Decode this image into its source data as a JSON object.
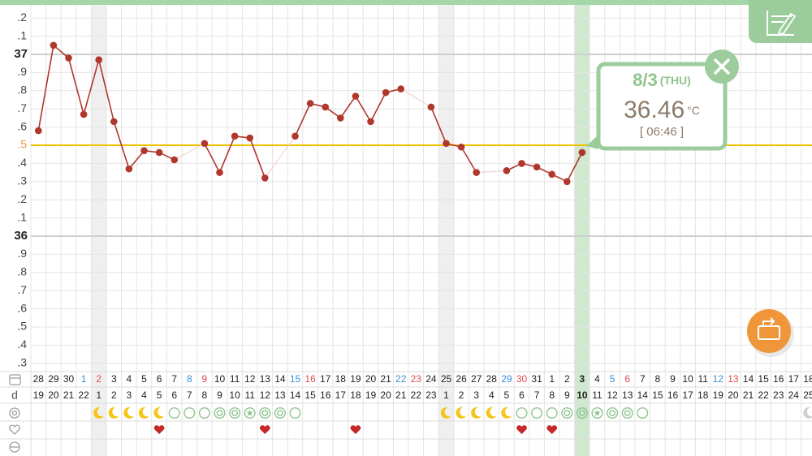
{
  "chart_data": {
    "type": "line",
    "categories": [
      "28",
      "29",
      "30",
      "1",
      "2",
      "3",
      "4",
      "5",
      "6",
      "7",
      "8",
      "9",
      "10",
      "11",
      "12",
      "13",
      "14",
      "15",
      "16",
      "17",
      "18",
      "19",
      "20",
      "21",
      "22",
      "23",
      "24",
      "25",
      "26",
      "27",
      "28",
      "29",
      "30",
      "31",
      "1",
      "2",
      "3",
      "4",
      "5",
      "6",
      "7",
      "8",
      "9",
      "10",
      "11",
      "12",
      "13",
      "14",
      "15",
      "16",
      "17",
      "18"
    ],
    "cycle_days": [
      "19",
      "20",
      "21",
      "22",
      "1",
      "2",
      "3",
      "4",
      "5",
      "6",
      "7",
      "8",
      "9",
      "10",
      "11",
      "12",
      "13",
      "14",
      "15",
      "16",
      "17",
      "18",
      "19",
      "20",
      "21",
      "22",
      "23",
      "1",
      "2",
      "3",
      "4",
      "5",
      "6",
      "7",
      "8",
      "9",
      "10",
      "11",
      "12",
      "13",
      "14",
      "15",
      "16",
      "17",
      "18",
      "19",
      "20",
      "21",
      "22",
      "23",
      "24",
      "25"
    ],
    "values": [
      36.58,
      37.05,
      36.98,
      36.67,
      36.97,
      36.63,
      36.37,
      36.47,
      36.46,
      36.42,
      null,
      36.51,
      36.35,
      36.55,
      36.54,
      36.32,
      null,
      36.55,
      36.73,
      36.71,
      36.65,
      36.77,
      36.63,
      36.79,
      36.81,
      null,
      36.71,
      36.51,
      36.49,
      36.35,
      null,
      36.36,
      36.4,
      36.38,
      36.34,
      36.3,
      36.46,
      null,
      null,
      null,
      null,
      null,
      null,
      null,
      null,
      null,
      null,
      null,
      null,
      null,
      null,
      null
    ],
    "color": "#b0372c",
    "ylim": [
      35.25,
      37.25
    ],
    "yticks": [
      {
        "value": 37.2,
        "label": ".2"
      },
      {
        "value": 37.1,
        "label": ".1"
      },
      37,
      {
        "value": 36.9,
        "label": ".9"
      },
      {
        "value": 36.8,
        "label": ".8"
      },
      {
        "value": 36.7,
        "label": ".7"
      },
      {
        "value": 36.6,
        "label": ".6"
      },
      {
        "value": 36.5,
        "label": ".5"
      },
      {
        "value": 36.4,
        "label": ".4"
      },
      {
        "value": 36.3,
        "label": ".3"
      },
      {
        "value": 36.2,
        "label": ".2"
      },
      {
        "value": 36.1,
        "label": ".1"
      },
      36,
      {
        "value": 35.9,
        "label": ".9"
      },
      {
        "value": 35.8,
        "label": ".8"
      },
      {
        "value": 35.7,
        "label": ".7"
      },
      {
        "value": 35.6,
        "label": ".6"
      },
      {
        "value": 35.5,
        "label": ".5"
      },
      {
        "value": 35.4,
        "label": ".4"
      },
      {
        "value": 35.3,
        "label": ".3"
      }
    ],
    "grid": true,
    "coverline": 36.5,
    "coverline_color": "#f2c200",
    "day_colors": [
      null,
      null,
      null,
      "#3b8fd9",
      "#e04b4b",
      null,
      null,
      null,
      null,
      null,
      "#3b8fd9",
      "#e04b4b",
      null,
      null,
      null,
      null,
      null,
      "#3b8fd9",
      "#e04b4b",
      null,
      null,
      null,
      null,
      null,
      "#3b8fd9",
      "#e04b4b",
      null,
      null,
      null,
      null,
      null,
      "#3b8fd9",
      "#e04b4b",
      null,
      null,
      null,
      null,
      null,
      "#3b8fd9",
      "#e04b4b",
      null,
      null,
      null,
      null,
      null,
      "#3b8fd9",
      "#e04b4b",
      null,
      null,
      null,
      null,
      null
    ],
    "highlight_columns": [
      4,
      27
    ],
    "selected": 36,
    "symbols": [
      null,
      null,
      null,
      null,
      "moon",
      "moon",
      "moon",
      "moon",
      "moon",
      "circle",
      "circle",
      "circle",
      "double",
      "double",
      "star",
      "double",
      "double",
      "circle",
      null,
      null,
      null,
      null,
      null,
      null,
      null,
      null,
      null,
      "moon",
      "moon",
      "moon",
      "moon",
      "moon",
      "circle",
      "circle",
      "circle",
      "double",
      "double",
      "star",
      "double",
      "double",
      "circle",
      null,
      null,
      null,
      null,
      null,
      null,
      null,
      null,
      null,
      null,
      "moon-grey"
    ],
    "hearts": [
      false,
      false,
      false,
      false,
      false,
      false,
      false,
      false,
      true,
      false,
      false,
      false,
      false,
      false,
      false,
      true,
      false,
      false,
      false,
      false,
      false,
      true,
      false,
      false,
      false,
      false,
      false,
      false,
      false,
      false,
      false,
      false,
      true,
      false,
      true,
      false,
      false,
      false,
      false,
      false,
      false,
      false,
      false,
      false,
      false,
      false,
      false,
      false,
      false,
      false,
      false,
      false
    ],
    "row_label": "d",
    "popup": {
      "date": "8/3",
      "weekday": "(THU)",
      "unit": "°C",
      "time": "[ 06:46 ]"
    }
  }
}
